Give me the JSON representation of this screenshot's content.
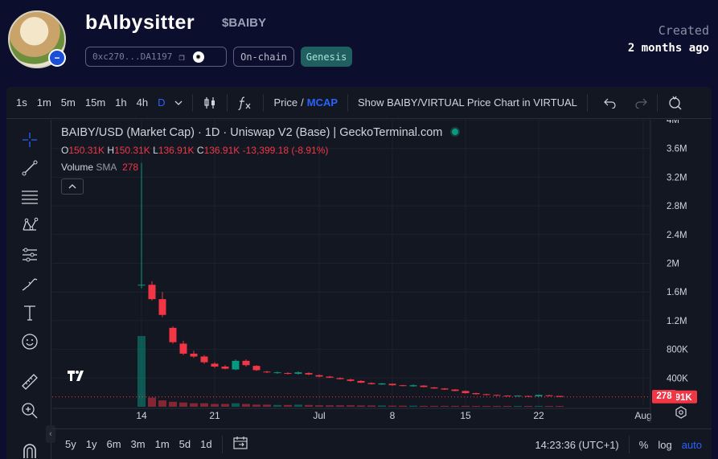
{
  "token": {
    "name": "bAIbysitter",
    "symbol": "$BAIBY",
    "address": "0xc270...DA1197",
    "tags": [
      "On-chain",
      "Genesis"
    ],
    "created_label": "Created",
    "created_value": "2 months ago"
  },
  "toolbar": {
    "intervals": [
      "1s",
      "1m",
      "5m",
      "15m",
      "1h",
      "4h",
      "D"
    ],
    "active_interval": "D",
    "price_label": "Price",
    "price_sep": "/",
    "mcap_label": "MCAP",
    "show_pair_label": "Show BAIBY/VIRTUAL Price Chart in VIRTUAL"
  },
  "legend": {
    "title": "BAIBY/USD (Market Cap) · 1D · Uniswap V2 (Base) | GeckoTerminal.com",
    "o_label": "O",
    "o": "150.31K",
    "h_label": "H",
    "h": "150.31K",
    "l_label": "L",
    "l": "136.91K",
    "c_label": "C",
    "c": "136.91K",
    "change": "-13,399.18 (-8.91%)",
    "volume_label": "Volume",
    "sma_label": "SMA",
    "volume_value": "278"
  },
  "bottom_bar": {
    "ranges": [
      "5y",
      "1y",
      "6m",
      "3m",
      "1m",
      "5d",
      "1d"
    ],
    "time": "14:23:36 (UTC+1)",
    "percent": "%",
    "log": "log",
    "auto": "auto"
  },
  "colors": {
    "up": "#089981",
    "down": "#f23645",
    "accent": "#2962ff",
    "background": "#131722",
    "page": "#0b0e2c"
  },
  "chart_data": {
    "type": "candlestick",
    "y_axis_ticks": [
      "4M",
      "3.6M",
      "3.2M",
      "2.8M",
      "2.4M",
      "2M",
      "1.6M",
      "1.2M",
      "800K",
      "400K"
    ],
    "ylim": [
      0,
      4000000
    ],
    "x_tick_labels": [
      "14",
      "21",
      "Jul",
      "8",
      "15",
      "22",
      "Aug"
    ],
    "x_tick_days": [
      0,
      7,
      17,
      24,
      31,
      38,
      48
    ],
    "last_price_label": "136.91K",
    "last_price": 136910,
    "last_volume_label": "278",
    "candles": [
      {
        "d": 0,
        "o": 1700000,
        "h": 3400000,
        "l": 1650000,
        "c": 1700000
      },
      {
        "d": 1,
        "o": 1700000,
        "h": 1750000,
        "l": 1480000,
        "c": 1500000
      },
      {
        "d": 2,
        "o": 1500000,
        "h": 1600000,
        "l": 1250000,
        "c": 1280000
      },
      {
        "d": 3,
        "o": 1100000,
        "h": 1120000,
        "l": 880000,
        "c": 900000
      },
      {
        "d": 4,
        "o": 880000,
        "h": 920000,
        "l": 720000,
        "c": 740000
      },
      {
        "d": 5,
        "o": 740000,
        "h": 780000,
        "l": 680000,
        "c": 700000
      },
      {
        "d": 6,
        "o": 700000,
        "h": 720000,
        "l": 600000,
        "c": 620000
      },
      {
        "d": 7,
        "o": 600000,
        "h": 620000,
        "l": 540000,
        "c": 560000
      },
      {
        "d": 8,
        "o": 560000,
        "h": 580000,
        "l": 520000,
        "c": 530000
      },
      {
        "d": 9,
        "o": 520000,
        "h": 660000,
        "l": 510000,
        "c": 640000
      },
      {
        "d": 10,
        "o": 640000,
        "h": 660000,
        "l": 560000,
        "c": 580000
      },
      {
        "d": 11,
        "o": 570000,
        "h": 580000,
        "l": 500000,
        "c": 510000
      },
      {
        "d": 12,
        "o": 490000,
        "h": 500000,
        "l": 470000,
        "c": 480000
      },
      {
        "d": 13,
        "o": 470000,
        "h": 490000,
        "l": 460000,
        "c": 480000
      },
      {
        "d": 14,
        "o": 470000,
        "h": 480000,
        "l": 450000,
        "c": 460000
      },
      {
        "d": 15,
        "o": 460000,
        "h": 490000,
        "l": 450000,
        "c": 480000
      },
      {
        "d": 16,
        "o": 470000,
        "h": 480000,
        "l": 440000,
        "c": 450000
      },
      {
        "d": 17,
        "o": 440000,
        "h": 450000,
        "l": 410000,
        "c": 420000
      },
      {
        "d": 18,
        "o": 420000,
        "h": 430000,
        "l": 400000,
        "c": 405000
      },
      {
        "d": 19,
        "o": 400000,
        "h": 410000,
        "l": 380000,
        "c": 385000
      },
      {
        "d": 20,
        "o": 380000,
        "h": 390000,
        "l": 350000,
        "c": 360000
      },
      {
        "d": 21,
        "o": 360000,
        "h": 370000,
        "l": 330000,
        "c": 335000
      },
      {
        "d": 22,
        "o": 330000,
        "h": 340000,
        "l": 310000,
        "c": 315000
      },
      {
        "d": 23,
        "o": 310000,
        "h": 330000,
        "l": 305000,
        "c": 325000
      },
      {
        "d": 24,
        "o": 320000,
        "h": 325000,
        "l": 295000,
        "c": 300000
      },
      {
        "d": 25,
        "o": 300000,
        "h": 305000,
        "l": 285000,
        "c": 290000
      },
      {
        "d": 26,
        "o": 285000,
        "h": 310000,
        "l": 280000,
        "c": 300000
      },
      {
        "d": 27,
        "o": 295000,
        "h": 300000,
        "l": 270000,
        "c": 275000
      },
      {
        "d": 28,
        "o": 270000,
        "h": 275000,
        "l": 250000,
        "c": 255000
      },
      {
        "d": 29,
        "o": 255000,
        "h": 260000,
        "l": 235000,
        "c": 240000
      },
      {
        "d": 30,
        "o": 240000,
        "h": 245000,
        "l": 215000,
        "c": 220000
      },
      {
        "d": 31,
        "o": 220000,
        "h": 225000,
        "l": 185000,
        "c": 190000
      },
      {
        "d": 32,
        "o": 190000,
        "h": 195000,
        "l": 170000,
        "c": 175000
      },
      {
        "d": 33,
        "o": 175000,
        "h": 180000,
        "l": 160000,
        "c": 165000
      },
      {
        "d": 34,
        "o": 165000,
        "h": 170000,
        "l": 150000,
        "c": 155000
      },
      {
        "d": 35,
        "o": 155000,
        "h": 160000,
        "l": 145000,
        "c": 150000
      },
      {
        "d": 36,
        "o": 150000,
        "h": 158000,
        "l": 145000,
        "c": 155000
      },
      {
        "d": 37,
        "o": 150000,
        "h": 155000,
        "l": 140000,
        "c": 145000
      },
      {
        "d": 38,
        "o": 145000,
        "h": 170000,
        "l": 140000,
        "c": 165000
      },
      {
        "d": 39,
        "o": 160000,
        "h": 165000,
        "l": 145000,
        "c": 150000
      },
      {
        "d": 40,
        "o": 150310,
        "h": 150310,
        "l": 136910,
        "c": 136910
      }
    ],
    "volume_rel": [
      1.0,
      0.13,
      0.09,
      0.07,
      0.06,
      0.05,
      0.05,
      0.04,
      0.04,
      0.05,
      0.04,
      0.03,
      0.03,
      0.025,
      0.025,
      0.03,
      0.025,
      0.02,
      0.02,
      0.02,
      0.02,
      0.018,
      0.018,
      0.018,
      0.015,
      0.015,
      0.015,
      0.012,
      0.012,
      0.012,
      0.012,
      0.012,
      0.01,
      0.01,
      0.01,
      0.01,
      0.01,
      0.01,
      0.012,
      0.008,
      0.006
    ]
  }
}
